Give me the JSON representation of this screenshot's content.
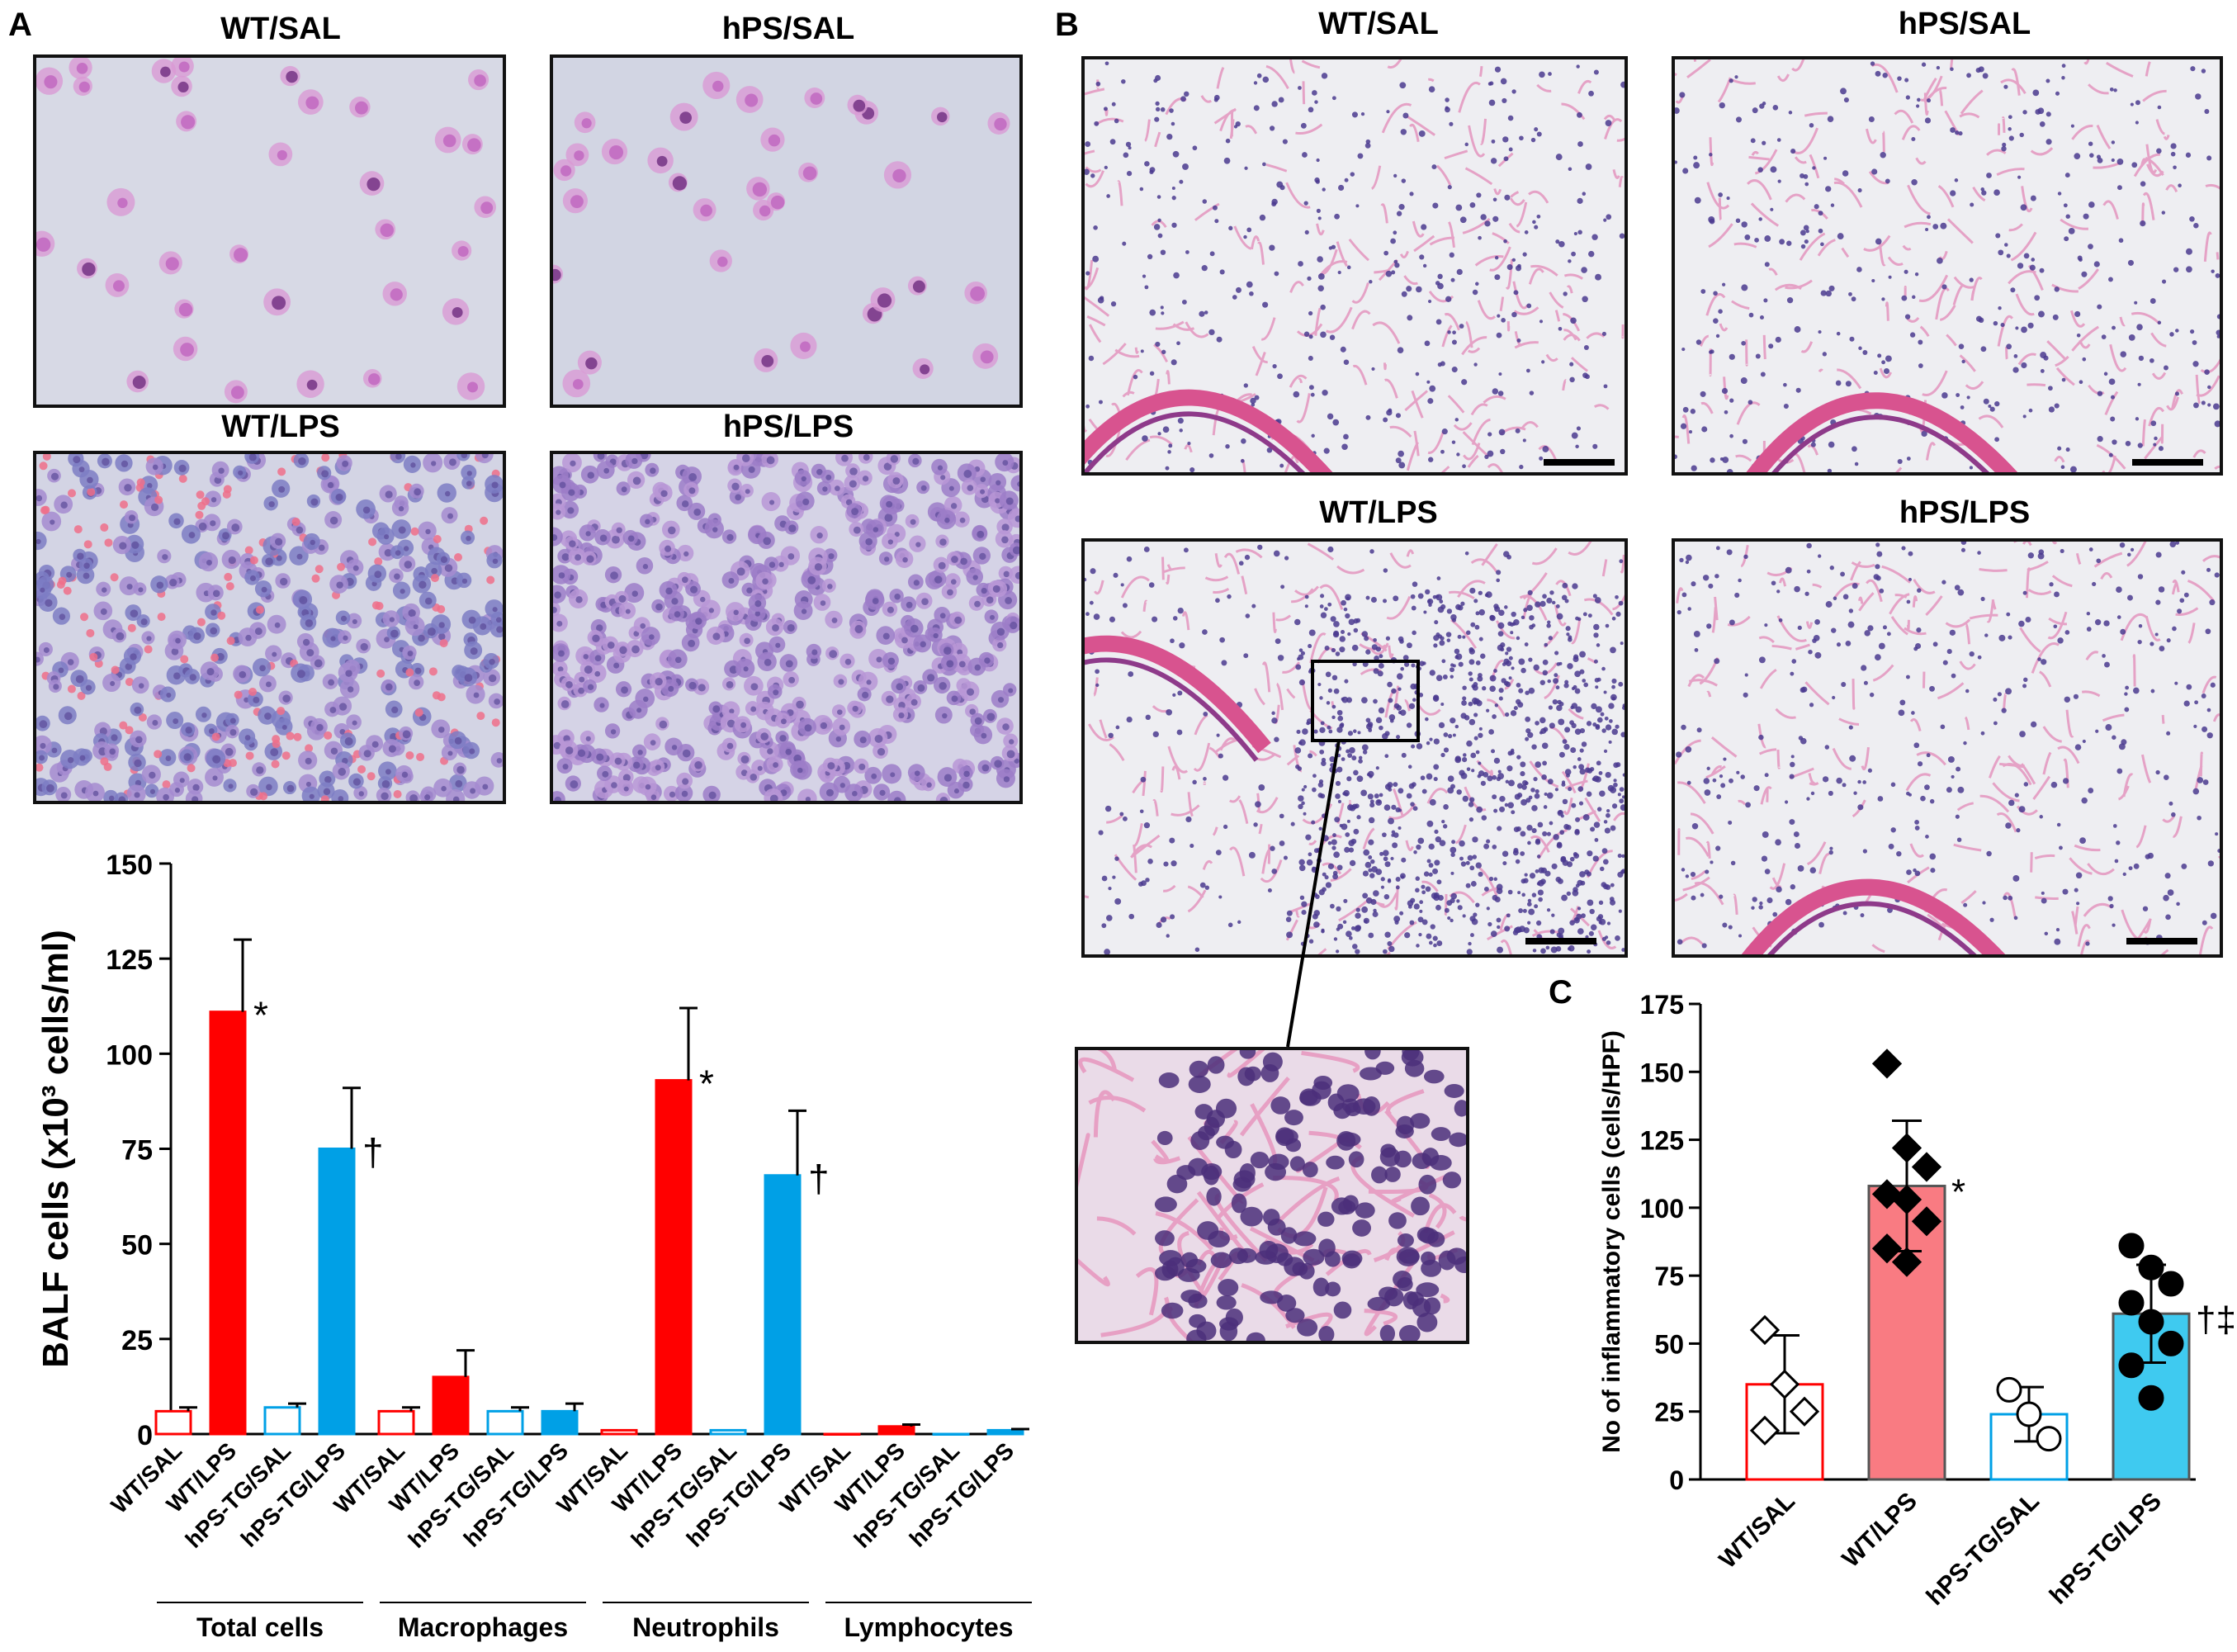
{
  "panels": {
    "A": "A",
    "B": "B",
    "C": "C"
  },
  "panel_a_titles": [
    "WT/SAL",
    "hPS/SAL",
    "WT/LPS",
    "hPS/LPS"
  ],
  "panel_b_titles": [
    "WT/SAL",
    "hPS/SAL",
    "WT/LPS",
    "hPS/LPS"
  ],
  "colors": {
    "wt": "#ff0000",
    "hps": "#00a0e6",
    "wt_lps_c": "#f97b82",
    "hps_lps_c": "#3fcaf0",
    "he_pink": "#e9a2c7",
    "he_nuclei": "#4a3a8f"
  },
  "chart_data": [
    {
      "type": "bar",
      "panel": "A",
      "ylabel": "BALF cells (x10³ cells/ml)",
      "ylim": [
        0,
        150
      ],
      "yticks": [
        0,
        25,
        50,
        75,
        100,
        125,
        150
      ],
      "groups": [
        "Total cells",
        "Macrophages",
        "Neutrophils",
        "Lymphocytes"
      ],
      "categories": [
        "WT/SAL",
        "WT/LPS",
        "hPS-TG/SAL",
        "hPS-TG/LPS"
      ],
      "series": [
        {
          "values": [
            6,
            111,
            7,
            75
          ],
          "errors": [
            1,
            19,
            1,
            16
          ],
          "marks": [
            "",
            "*",
            "",
            "†"
          ]
        },
        {
          "values": [
            6,
            15,
            6,
            6
          ],
          "errors": [
            1,
            7,
            1,
            2
          ],
          "marks": [
            "",
            "",
            "",
            ""
          ]
        },
        {
          "values": [
            1,
            93,
            1,
            68
          ],
          "errors": [
            0,
            19,
            0,
            17
          ],
          "marks": [
            "",
            "*",
            "",
            "†"
          ]
        },
        {
          "values": [
            0,
            2,
            0,
            1
          ],
          "errors": [
            0,
            0.5,
            0,
            0.3
          ],
          "marks": [
            "",
            "",
            "",
            ""
          ]
        }
      ]
    },
    {
      "type": "bar",
      "panel": "C",
      "ylabel": "No of inflammatory cells (cells/HPF)",
      "ylim": [
        0,
        175
      ],
      "yticks": [
        0,
        25,
        50,
        75,
        100,
        125,
        150,
        175
      ],
      "categories": [
        "WT/SAL",
        "WT/LPS",
        "hPS-TG/SAL",
        "hPS-TG/LPS"
      ],
      "values": [
        35,
        108,
        24,
        61
      ],
      "errors": [
        18,
        24,
        10,
        18
      ],
      "marks": [
        "",
        "*",
        "",
        "†‡"
      ],
      "points": [
        [
          55,
          35,
          25,
          18
        ],
        [
          153,
          122,
          115,
          105,
          103,
          95,
          85,
          80
        ],
        [
          33,
          24,
          15
        ],
        [
          86,
          78,
          72,
          65,
          58,
          50,
          42,
          30
        ]
      ]
    }
  ]
}
